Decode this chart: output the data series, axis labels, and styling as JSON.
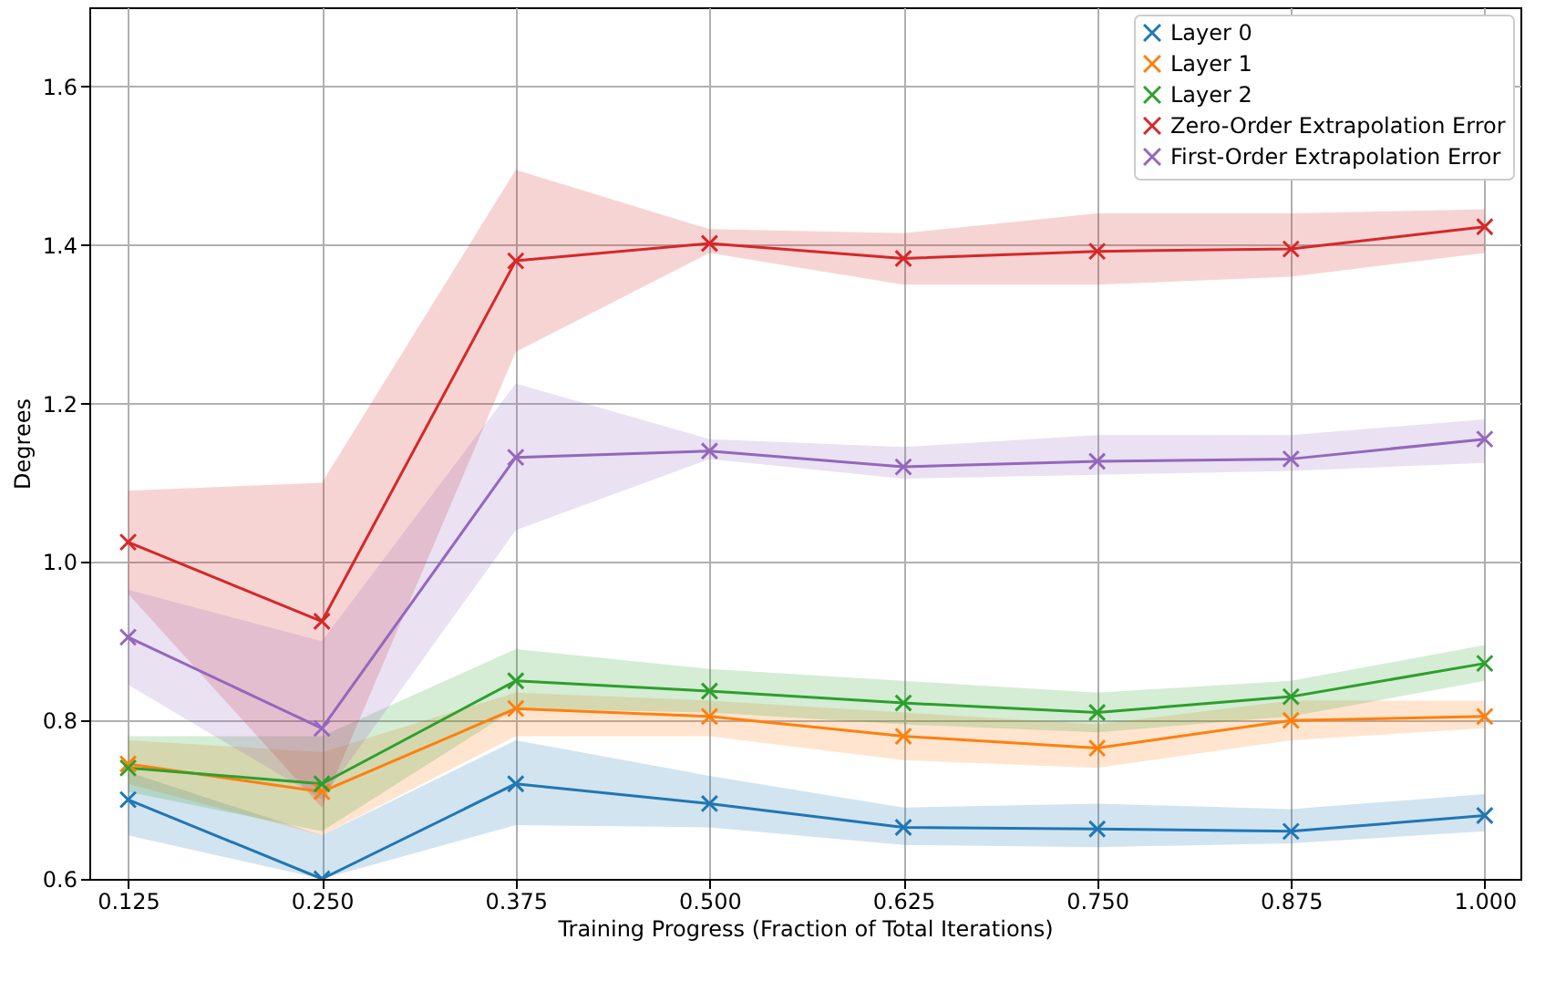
{
  "chart_data": {
    "type": "line",
    "xlabel": "Training Progress (Fraction of Total Iterations)",
    "ylabel": "Degrees",
    "x": [
      0.125,
      0.25,
      0.375,
      0.5,
      0.625,
      0.75,
      0.875,
      1.0
    ],
    "xlim": [
      0.1,
      1.023
    ],
    "xticks": [
      0.125,
      {
        "value": 0.25,
        "label": "0.250"
      },
      0.375,
      {
        "value": 0.5,
        "label": "0.500"
      },
      0.625,
      {
        "value": 0.75,
        "label": "0.750"
      },
      0.875,
      {
        "value": 1.0,
        "label": "1.000"
      }
    ],
    "ylim": [
      0.6,
      1.7
    ],
    "yticks": [
      0.6,
      0.8,
      {
        "value": 1.0,
        "label": "1.0"
      },
      1.2,
      1.4,
      1.6
    ],
    "grid": true,
    "legend": "top right",
    "marker": "cross",
    "line_style": "solid",
    "series": [
      {
        "name": "Layer 0",
        "color": "#1f77b4",
        "values": [
          0.7,
          0.6,
          0.72,
          0.695,
          0.665,
          0.663,
          0.66,
          0.68
        ],
        "lower": [
          0.655,
          0.6,
          0.668,
          0.665,
          0.643,
          0.64,
          0.645,
          0.66
        ],
        "upper": [
          0.735,
          0.655,
          0.775,
          0.73,
          0.69,
          0.695,
          0.688,
          0.707
        ]
      },
      {
        "name": "Layer 1",
        "color": "#ff7f0e",
        "values": [
          0.745,
          0.71,
          0.815,
          0.805,
          0.78,
          0.765,
          0.8,
          0.805
        ],
        "lower": [
          0.72,
          0.655,
          0.78,
          0.78,
          0.75,
          0.74,
          0.775,
          0.79
        ],
        "upper": [
          0.775,
          0.76,
          0.835,
          0.825,
          0.81,
          0.795,
          0.825,
          0.825
        ]
      },
      {
        "name": "Layer 2",
        "color": "#2ca02c",
        "values": [
          0.74,
          0.72,
          0.85,
          0.837,
          0.822,
          0.81,
          0.83,
          0.872
        ],
        "lower": [
          0.71,
          0.66,
          0.815,
          0.81,
          0.795,
          0.785,
          0.805,
          0.85
        ],
        "upper": [
          0.78,
          0.78,
          0.89,
          0.865,
          0.85,
          0.835,
          0.85,
          0.895
        ]
      },
      {
        "name": "Zero-Order Extrapolation Error",
        "color": "#d62728",
        "values": [
          1.025,
          0.925,
          1.38,
          1.402,
          1.383,
          1.392,
          1.395,
          1.423
        ],
        "lower": [
          0.96,
          0.69,
          1.265,
          1.39,
          1.35,
          1.35,
          1.36,
          1.39
        ],
        "upper": [
          1.09,
          1.1,
          1.495,
          1.42,
          1.415,
          1.44,
          1.44,
          1.445
        ]
      },
      {
        "name": "First-Order Extrapolation Error",
        "color": "#9467bd",
        "values": [
          0.905,
          0.79,
          1.132,
          1.14,
          1.12,
          1.127,
          1.13,
          1.155
        ],
        "lower": [
          0.845,
          0.7,
          1.04,
          1.13,
          1.105,
          1.11,
          1.115,
          1.125
        ],
        "upper": [
          0.965,
          0.9,
          1.225,
          1.155,
          1.145,
          1.16,
          1.16,
          1.18
        ]
      }
    ]
  }
}
